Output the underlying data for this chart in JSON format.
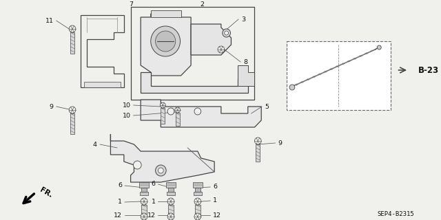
{
  "bg_color": "#f0f0ec",
  "line_color": "#444444",
  "text_color": "#111111",
  "diagram_code": "SEP4-B2315",
  "b23_label": "B-23",
  "fr_label": "FR.",
  "fig_w": 6.4,
  "fig_h": 3.2,
  "dpi": 100
}
